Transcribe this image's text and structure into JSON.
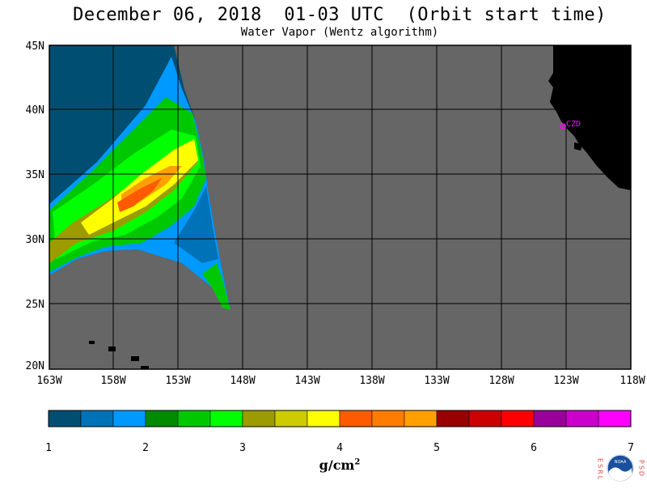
{
  "title": "December 06, 2018  01-03 UTC  (Orbit start time)",
  "subtitle": "Water Vapor (Wentz algorithm)",
  "lat_labels": [
    "45N",
    "40N",
    "35N",
    "30N",
    "25N",
    "20N"
  ],
  "lon_labels": [
    "163W",
    "158W",
    "153W",
    "148W",
    "143W",
    "138W",
    "133W",
    "128W",
    "123W",
    "118W"
  ],
  "station_label": "CZD",
  "colorbar": {
    "ticks": [
      "1",
      "2",
      "3",
      "4",
      "5",
      "6",
      "7"
    ],
    "unit_base": "g/cm",
    "unit_exp": "2",
    "colors": [
      "#004f73",
      "#0072b8",
      "#0099ff",
      "#008a00",
      "#00c800",
      "#00ff00",
      "#9c9c00",
      "#cccc00",
      "#ffff00",
      "#ff5a00",
      "#ff7c00",
      "#ffa000",
      "#990000",
      "#cc0000",
      "#ff0000",
      "#990099",
      "#cc00cc",
      "#ff00ff"
    ]
  },
  "colors": {
    "no_data": "#666666",
    "land": "#000000",
    "grid": "#000000",
    "station": "#ff00ff"
  },
  "logo": {
    "left_letters": "ESRL",
    "right_letters": "PSD",
    "badge": "NOAA"
  }
}
